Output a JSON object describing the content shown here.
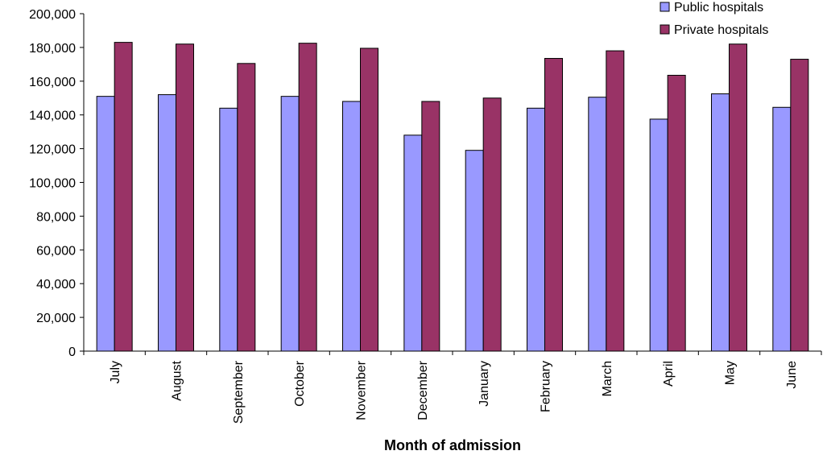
{
  "chart_data": {
    "type": "bar",
    "title": "",
    "xlabel": "Month of admission",
    "ylabel": "",
    "ylim": [
      0,
      200000
    ],
    "y_ticks": [
      "0",
      "20,000",
      "40,000",
      "60,000",
      "80,000",
      "100,000",
      "120,000",
      "140,000",
      "160,000",
      "180,000",
      "200,000"
    ],
    "categories": [
      "July",
      "August",
      "September",
      "October",
      "November",
      "December",
      "January",
      "February",
      "March",
      "April",
      "May",
      "June"
    ],
    "series": [
      {
        "name": "Public hospitals",
        "color": "#9999ff",
        "values": [
          151000,
          152000,
          144000,
          151000,
          148000,
          128000,
          119000,
          144000,
          150500,
          137500,
          152500,
          144500
        ]
      },
      {
        "name": "Private hospitals",
        "color": "#993366",
        "values": [
          183000,
          182000,
          170500,
          182500,
          179500,
          148000,
          150000,
          173500,
          178000,
          163500,
          182000,
          173000
        ]
      }
    ],
    "grid": false,
    "legend_position": "top-right"
  }
}
